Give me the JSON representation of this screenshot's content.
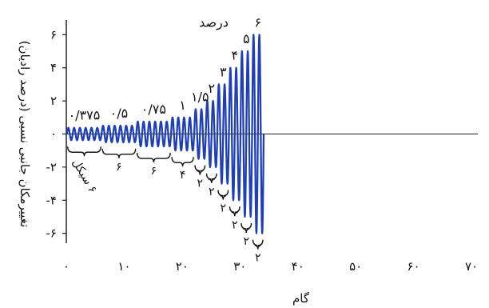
{
  "chart_data": {
    "type": "line",
    "xlabel": "گام",
    "ylabel": "تغییرمکان جانبی نسبی (درصد رادیان)",
    "xlim": [
      0,
      70
    ],
    "ylim": [
      -6.5,
      6.5
    ],
    "x_ticks": [
      {
        "value": 0,
        "label": "۰"
      },
      {
        "value": 10,
        "label": "۱۰"
      },
      {
        "value": 20,
        "label": "۲۰"
      },
      {
        "value": 30,
        "label": "۳۰"
      },
      {
        "value": 40,
        "label": "۴۰"
      },
      {
        "value": 50,
        "label": "۵۰"
      },
      {
        "value": 60,
        "label": "۶۰"
      },
      {
        "value": 70,
        "label": "۷۰"
      }
    ],
    "y_ticks": [
      {
        "value": 6,
        "label": "۶"
      },
      {
        "value": 4,
        "label": "۴"
      },
      {
        "value": 2,
        "label": "۲"
      },
      {
        "value": 0,
        "label": "۰"
      },
      {
        "value": -2,
        "label": "-۲"
      },
      {
        "value": -4,
        "label": "-۴"
      },
      {
        "value": -6,
        "label": "-۶"
      }
    ],
    "top_label": "درصد",
    "series_color": "#1f3fb8",
    "groups": [
      {
        "amplitude": 0.375,
        "cycles": 6,
        "amplitude_label": "۰/۳۷۵",
        "cycles_label": "۶ سیکل"
      },
      {
        "amplitude": 0.5,
        "cycles": 6,
        "amplitude_label": "۰/۵",
        "cycles_label": "۶"
      },
      {
        "amplitude": 0.75,
        "cycles": 6,
        "amplitude_label": "۰/۷۵",
        "cycles_label": "۶"
      },
      {
        "amplitude": 1,
        "cycles": 4,
        "amplitude_label": "۱",
        "cycles_label": "۴"
      },
      {
        "amplitude": 1.5,
        "cycles": 2,
        "amplitude_label": "۱/۵",
        "cycles_label": "۲"
      },
      {
        "amplitude": 2,
        "cycles": 2,
        "amplitude_label": "۲",
        "cycles_label": "۲"
      },
      {
        "amplitude": 3,
        "cycles": 2,
        "amplitude_label": "۳",
        "cycles_label": "۲"
      },
      {
        "amplitude": 4,
        "cycles": 2,
        "amplitude_label": "۴",
        "cycles_label": "۲"
      },
      {
        "amplitude": 5,
        "cycles": 2,
        "amplitude_label": "۵",
        "cycles_label": "۲"
      },
      {
        "amplitude": 6,
        "cycles": 2,
        "amplitude_label": "۶",
        "cycles_label": "۲"
      }
    ]
  }
}
